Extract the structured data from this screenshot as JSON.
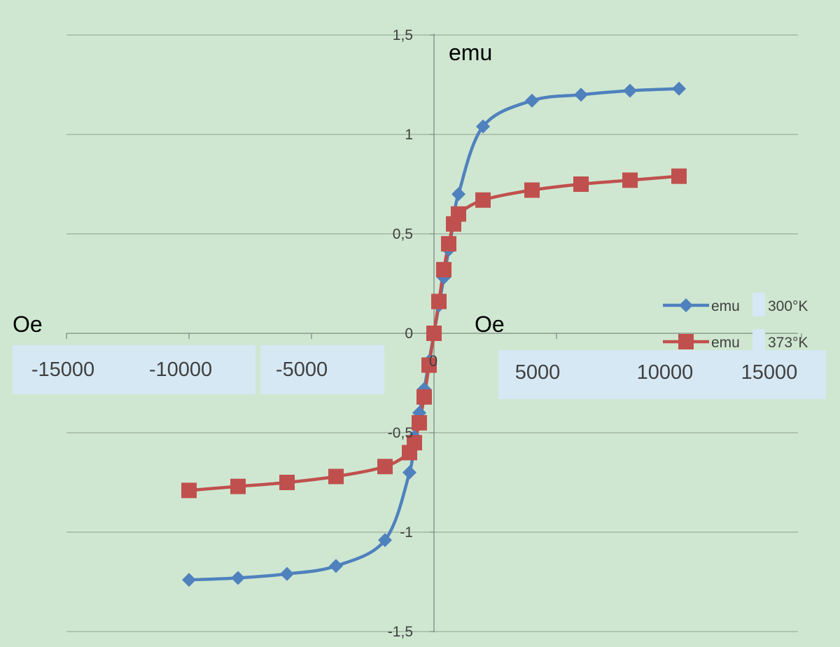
{
  "chart_data": {
    "type": "line",
    "title": "",
    "xlabel": "Oe",
    "xlabel_left": "Oe",
    "ylabel": "emu",
    "xlim": [
      -15000,
      15000
    ],
    "ylim": [
      -1.5,
      1.5
    ],
    "grid": "horizontal",
    "legend_position": "right",
    "x_tick_labels": [
      "-15000",
      "-10000",
      "-5000",
      "0",
      "5000",
      "10000",
      "15000"
    ],
    "y_tick_labels": [
      "1,5",
      "1",
      "0,5",
      "0",
      "-0,5",
      "-1",
      "-1,5"
    ],
    "series": [
      {
        "name": "emu",
        "label": "300°K",
        "color": "#4f81bd",
        "marker": "diamond",
        "points": [
          [
            -10000,
            -1.24
          ],
          [
            -8000,
            -1.23
          ],
          [
            -6000,
            -1.21
          ],
          [
            -4000,
            -1.17
          ],
          [
            -2000,
            -1.04
          ],
          [
            -1000,
            -0.7
          ],
          [
            -800,
            -0.52
          ],
          [
            -600,
            -0.4
          ],
          [
            -400,
            -0.28
          ],
          [
            -200,
            -0.14
          ],
          [
            0,
            0
          ],
          [
            200,
            0.14
          ],
          [
            400,
            0.28
          ],
          [
            600,
            0.42
          ],
          [
            800,
            0.56
          ],
          [
            1000,
            0.7
          ],
          [
            2000,
            1.04
          ],
          [
            4000,
            1.17
          ],
          [
            6000,
            1.2
          ],
          [
            8000,
            1.22
          ],
          [
            10000,
            1.23
          ]
        ]
      },
      {
        "name": "emu",
        "label": "373°K",
        "color": "#c0504d",
        "marker": "square",
        "points": [
          [
            -10000,
            -0.79
          ],
          [
            -8000,
            -0.77
          ],
          [
            -6000,
            -0.75
          ],
          [
            -4000,
            -0.72
          ],
          [
            -2000,
            -0.67
          ],
          [
            -1000,
            -0.6
          ],
          [
            -800,
            -0.55
          ],
          [
            -600,
            -0.45
          ],
          [
            -400,
            -0.32
          ],
          [
            -200,
            -0.16
          ],
          [
            0,
            0
          ],
          [
            200,
            0.16
          ],
          [
            400,
            0.32
          ],
          [
            600,
            0.45
          ],
          [
            800,
            0.55
          ],
          [
            1000,
            0.6
          ],
          [
            2000,
            0.67
          ],
          [
            4000,
            0.72
          ],
          [
            6000,
            0.75
          ],
          [
            8000,
            0.77
          ],
          [
            10000,
            0.79
          ]
        ]
      }
    ]
  }
}
